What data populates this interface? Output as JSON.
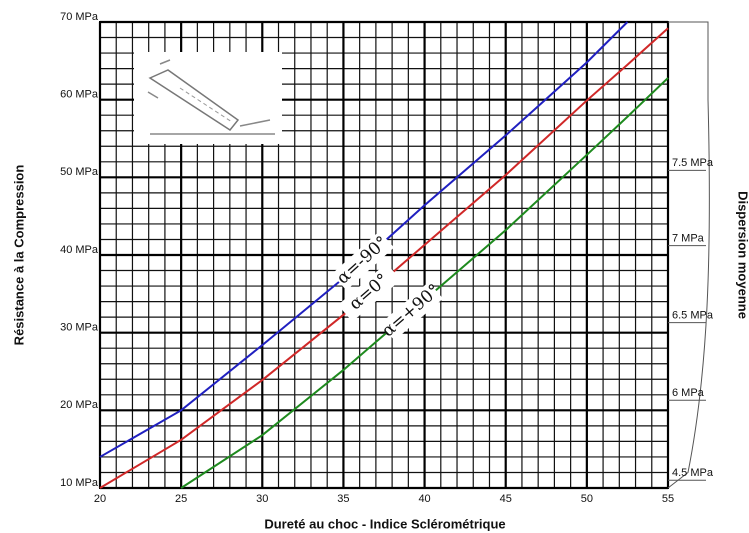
{
  "chart_data": {
    "type": "line",
    "xlabel": "Dureté au choc - Indice Sclérométrique",
    "ylabel": "Résistance à la Compression",
    "x": [
      20,
      25,
      30,
      35,
      40,
      45,
      50,
      52.5,
      55
    ],
    "series": [
      {
        "name": "α=-90°",
        "color": "#2020c0",
        "values": [
          14,
          20,
          28.4,
          37,
          46.4,
          55.4,
          64.8,
          70,
          null
        ]
      },
      {
        "name": "α=0°",
        "color": "#d02828",
        "values": [
          10,
          16.2,
          23.9,
          32.3,
          41.3,
          50.3,
          59.9,
          64.5,
          69.2
        ]
      },
      {
        "name": "α=+90°",
        "color": "#1e8a1e",
        "values": [
          null,
          10,
          16.8,
          25.2,
          34.2,
          43.2,
          52.9,
          57.8,
          62.8
        ]
      }
    ],
    "xlim": [
      20,
      55
    ],
    "xticks": [
      20,
      25,
      30,
      35,
      40,
      45,
      50,
      55
    ],
    "ylim": [
      10,
      70
    ],
    "yticks": [
      {
        "value": 10,
        "label": "10 MPa"
      },
      {
        "value": 20,
        "label": "20 MPa"
      },
      {
        "value": 30,
        "label": "30 MPa"
      },
      {
        "value": 40,
        "label": "40 MPa"
      },
      {
        "value": 50,
        "label": "50 MPa"
      },
      {
        "value": 60,
        "label": "60 MPa"
      },
      {
        "value": 70,
        "label": "70 MPa"
      }
    ],
    "grid": true,
    "minor_step": {
      "x": 1,
      "y": 2
    },
    "dispersion_axis": {
      "label": "Dispersion moyenne",
      "ticks": [
        {
          "label": "4.5 MPa",
          "at": 11
        },
        {
          "label": "6 MPa",
          "at": 21.3
        },
        {
          "label": "6.5 MPa",
          "at": 31.3
        },
        {
          "label": "7 MPa",
          "at": 41.2
        },
        {
          "label": "7.5 MPa",
          "at": 50.9
        }
      ]
    }
  }
}
